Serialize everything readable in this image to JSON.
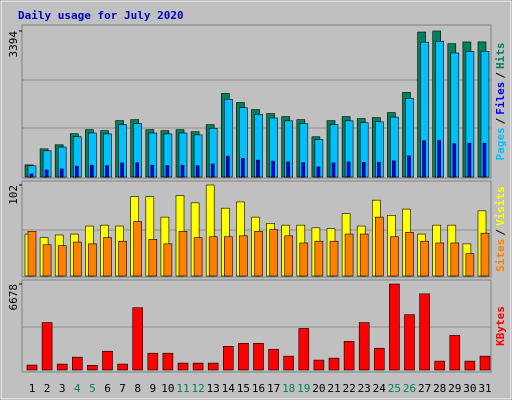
{
  "chart_data": [
    {
      "type": "bar",
      "title": "Daily usage for July 2020",
      "legend_separator": "/",
      "ylim": [
        0,
        3394
      ],
      "yticks": [
        3394
      ],
      "series": [
        {
          "name": "Hits",
          "color": "#00805c",
          "values": [
            281,
            655,
            749,
            1006,
            1100,
            1077,
            1311,
            1334,
            1100,
            1077,
            1100,
            1053,
            1217,
            1943,
            1732,
            1568,
            1475,
            1404,
            1334,
            936,
            1311,
            1404,
            1358,
            1381,
            1498,
            1966,
            3370,
            3394,
            3100,
            3140,
            3140
          ]
        },
        {
          "name": "Files",
          "color": "#0000ff",
          "values": [
            70,
            164,
            187,
            252,
            275,
            269,
            328,
            334,
            275,
            269,
            275,
            263,
            304,
            486,
            433,
            392,
            369,
            351,
            334,
            234,
            328,
            351,
            340,
            345,
            375,
            492,
            843,
            849,
            775,
            785,
            785
          ]
        },
        {
          "name": "Pages",
          "color": "#00c0ff",
          "values": [
            261,
            609,
            697,
            936,
            1023,
            1002,
            1219,
            1241,
            1023,
            1002,
            1023,
            979,
            1132,
            1807,
            1611,
            1458,
            1372,
            1306,
            1241,
            870,
            1219,
            1306,
            1263,
            1284,
            1393,
            1828,
            3134,
            3156,
            2883,
            2920,
            2920
          ]
        }
      ]
    },
    {
      "type": "bar",
      "ylim": [
        0,
        102
      ],
      "yticks": [
        102
      ],
      "series": [
        {
          "name": "Visits",
          "color": "#ffff00",
          "values": [
            47,
            43,
            46,
            47,
            56,
            57,
            56,
            89,
            89,
            66,
            90,
            82,
            102,
            76,
            83,
            66,
            59,
            57,
            57,
            54,
            53,
            70,
            56,
            85,
            68,
            75,
            47,
            57,
            57,
            36,
            73
          ]
        },
        {
          "name": "Sites",
          "color": "#ff8000",
          "values": [
            50,
            35,
            34,
            38,
            36,
            43,
            39,
            61,
            41,
            36,
            50,
            43,
            44,
            44,
            45,
            50,
            52,
            45,
            37,
            39,
            39,
            47,
            47,
            66,
            44,
            49,
            39,
            37,
            37,
            25,
            48
          ]
        }
      ]
    },
    {
      "type": "bar",
      "ylim": [
        0,
        6678
      ],
      "yticks": [
        6678
      ],
      "categories": [
        "1",
        "2",
        "3",
        "4",
        "5",
        "6",
        "7",
        "8",
        "9",
        "10",
        "11",
        "12",
        "13",
        "14",
        "15",
        "16",
        "17",
        "18",
        "19",
        "20",
        "21",
        "22",
        "23",
        "24",
        "25",
        "26",
        "27",
        "28",
        "29",
        "30",
        "31"
      ],
      "category_label_colors": [
        "#000000",
        "#000000",
        "#000000",
        "#00805c",
        "#00805c",
        "#000000",
        "#000000",
        "#000000",
        "#000000",
        "#000000",
        "#00805c",
        "#00805c",
        "#000000",
        "#000000",
        "#000000",
        "#000000",
        "#000000",
        "#00805c",
        "#00805c",
        "#000000",
        "#000000",
        "#000000",
        "#000000",
        "#000000",
        "#00805c",
        "#00805c",
        "#000000",
        "#000000",
        "#000000",
        "#000000",
        "#000000"
      ],
      "series": [
        {
          "name": "KBytes",
          "color": "#ff0000",
          "values": [
            384,
            3684,
            461,
            998,
            366,
            1458,
            461,
            4835,
            1305,
            1305,
            537,
            537,
            537,
            1842,
            2072,
            2072,
            1612,
            1075,
            3223,
            768,
            921,
            2226,
            3684,
            1689,
            6678,
            4298,
            5912,
            691,
            2686,
            691,
            1075
          ]
        }
      ]
    }
  ]
}
